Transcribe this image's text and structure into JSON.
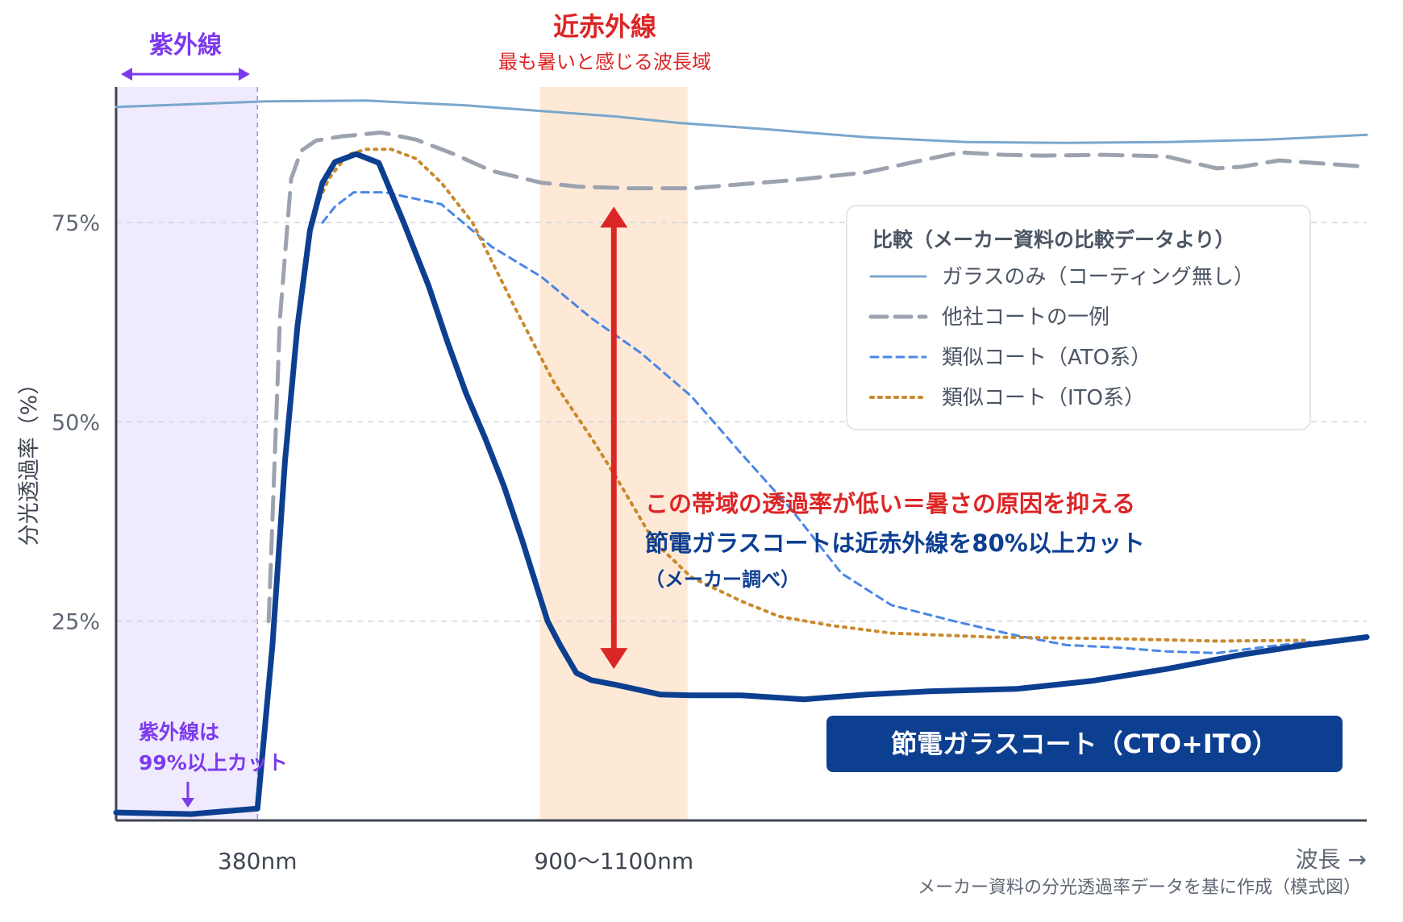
{
  "chart_data": {
    "type": "line",
    "ylabel": "分光透過率（%）",
    "xlabel": "波長 →",
    "source_note": "メーカー資料の分光透過率データを基に作成（模式図）",
    "ylim": [
      0,
      92
    ],
    "xlim": [
      0,
      100
    ],
    "y_ticks": [
      {
        "value": 25,
        "label": "25%"
      },
      {
        "value": 50,
        "label": "50%"
      },
      {
        "value": 75,
        "label": "75%"
      }
    ],
    "x_ticks": [
      {
        "value": 11.3,
        "label": "380nm"
      },
      {
        "value": 39.8,
        "label": "900〜1100nm"
      }
    ],
    "grid": "horizontal-dashed",
    "bands": [
      {
        "name": "uv",
        "from": 0,
        "to": 11.3,
        "color": "#efeafd",
        "title": "紫外線",
        "title_color": "#7c3aed"
      },
      {
        "name": "nir",
        "from": 33.9,
        "to": 45.7,
        "color": "#fde9d6",
        "title": "近赤外線",
        "subtitle": "最も暑いと感じる波長域",
        "title_color": "#dc2626"
      }
    ],
    "series": [
      {
        "name": "ガラスのみ（コーティング無し）",
        "color": "#7aa7cc",
        "style": "solid",
        "width": 3,
        "points": [
          [
            0,
            89.5
          ],
          [
            12,
            90.2
          ],
          [
            20,
            90.3
          ],
          [
            28,
            89.7
          ],
          [
            34,
            89.0
          ],
          [
            40,
            88.3
          ],
          [
            45,
            87.5
          ],
          [
            52,
            86.7
          ],
          [
            60,
            85.7
          ],
          [
            68,
            85.1
          ],
          [
            76,
            85.0
          ],
          [
            84,
            85.1
          ],
          [
            92,
            85.4
          ],
          [
            100,
            86.0
          ]
        ]
      },
      {
        "name": "他社コートの一例",
        "color": "#9ca3af",
        "style": "dashed",
        "width": 5,
        "points": [
          [
            12.2,
            25
          ],
          [
            13.1,
            63
          ],
          [
            14,
            80.5
          ],
          [
            14.8,
            84
          ],
          [
            16,
            85.3
          ],
          [
            18,
            85.8
          ],
          [
            21.2,
            86.3
          ],
          [
            24,
            85.4
          ],
          [
            27,
            83.6
          ],
          [
            30,
            81.5
          ],
          [
            34,
            80.0
          ],
          [
            37,
            79.5
          ],
          [
            41,
            79.3
          ],
          [
            46,
            79.3
          ],
          [
            54,
            80.3
          ],
          [
            60,
            81.3
          ],
          [
            65,
            83.0
          ],
          [
            67.5,
            83.8
          ],
          [
            71,
            83.5
          ],
          [
            74,
            83.4
          ],
          [
            79,
            83.5
          ],
          [
            84,
            83.3
          ],
          [
            88,
            81.8
          ],
          [
            90,
            82.0
          ],
          [
            93,
            82.8
          ],
          [
            100,
            82.0
          ]
        ]
      },
      {
        "name": "類似コート（ATO系）",
        "color": "#4a86e8",
        "style": "dashed-short",
        "width": 3,
        "points": [
          [
            16.5,
            75
          ],
          [
            17.5,
            77
          ],
          [
            19,
            78.8
          ],
          [
            21.5,
            78.8
          ],
          [
            26,
            77.3
          ],
          [
            30,
            72.0
          ],
          [
            34,
            68.2
          ],
          [
            38,
            63.0
          ],
          [
            42,
            58.6
          ],
          [
            46,
            53.2
          ],
          [
            50,
            46.0
          ],
          [
            54,
            39.0
          ],
          [
            58,
            31.0
          ],
          [
            62,
            27.0
          ],
          [
            67,
            25.0
          ],
          [
            72,
            23.2
          ],
          [
            76,
            22.0
          ],
          [
            80,
            21.7
          ],
          [
            84,
            21.2
          ],
          [
            88,
            21.0
          ],
          [
            92,
            21.8
          ],
          [
            95.5,
            22.4
          ]
        ]
      },
      {
        "name": "類似コート（ITO系）",
        "color": "#c98a2e",
        "style": "dotted",
        "width": 4,
        "points": [
          [
            16,
            77.0
          ],
          [
            17,
            80.5
          ],
          [
            18.5,
            83.5
          ],
          [
            20,
            84.2
          ],
          [
            22,
            84.2
          ],
          [
            24,
            83.0
          ],
          [
            26,
            80.0
          ],
          [
            28.5,
            75.0
          ],
          [
            32,
            64.0
          ],
          [
            35,
            55.0
          ],
          [
            38,
            48.0
          ],
          [
            40,
            43.0
          ],
          [
            43,
            35.0
          ],
          [
            46,
            30.5
          ],
          [
            50,
            27.5
          ],
          [
            53,
            25.6
          ],
          [
            57,
            24.5
          ],
          [
            62,
            23.5
          ],
          [
            70,
            23.0
          ],
          [
            80,
            22.8
          ],
          [
            88,
            22.5
          ],
          [
            95,
            22.6
          ]
        ]
      },
      {
        "name": "節電ガラスコート（CTO+ITO）",
        "color": "#0d3f91",
        "style": "solid",
        "width": 7,
        "points": [
          [
            0,
            1.0
          ],
          [
            6,
            0.8
          ],
          [
            11.3,
            1.5
          ],
          [
            12.5,
            22.0
          ],
          [
            13.5,
            45.0
          ],
          [
            14.5,
            62.0
          ],
          [
            15.5,
            74.0
          ],
          [
            16.5,
            80.0
          ],
          [
            17.5,
            82.6
          ],
          [
            19.2,
            83.6
          ],
          [
            21,
            82.5
          ],
          [
            23,
            75.0
          ],
          [
            25,
            67.0
          ],
          [
            26.5,
            60.0
          ],
          [
            28,
            53.5
          ],
          [
            29.5,
            48.0
          ],
          [
            31,
            42.0
          ],
          [
            32.5,
            35.0
          ],
          [
            33.5,
            30.0
          ],
          [
            34.5,
            25.0
          ],
          [
            35.5,
            22.0
          ],
          [
            36.8,
            18.5
          ],
          [
            38,
            17.6
          ],
          [
            40,
            17.0
          ],
          [
            43.5,
            15.8
          ],
          [
            46,
            15.7
          ],
          [
            50,
            15.7
          ],
          [
            55,
            15.2
          ],
          [
            60,
            15.8
          ],
          [
            65,
            16.2
          ],
          [
            72,
            16.5
          ],
          [
            78,
            17.5
          ],
          [
            84,
            19.0
          ],
          [
            90,
            20.8
          ],
          [
            95,
            22.0
          ],
          [
            100,
            23.0
          ]
        ]
      }
    ],
    "legend": {
      "title": "比較（メーカー資料の比較データより）",
      "position": "right-upper",
      "entries": [
        "ガラスのみ（コーティング無し）",
        "他社コートの一例",
        "類似コート（ATO系）",
        "類似コート（ITO系）"
      ]
    },
    "annotations": {
      "uv_note": [
        "紫外線は",
        "99%以上カット"
      ],
      "nir_title": "この帯域の透過率が低い＝暑さの原因を抑える",
      "nir_claim": "節電ガラスコートは近赤外線を80%以上カット",
      "nir_source": "（メーカー調べ）",
      "product_label": "節電ガラスコート（CTO+ITO）"
    },
    "arrow": {
      "x": 39.8,
      "from": 19,
      "to": 77,
      "color": "#dc2626"
    },
    "colors": {
      "axis": "#3f4652",
      "grid": "#d1d5db",
      "tick_text": "#5f6774",
      "annotation_red": "#dc2626",
      "annotation_navy": "#0d3f91",
      "uv_purple": "#7c3aed",
      "legend_text": "#4b5563",
      "product_box": "#0d3f91"
    }
  }
}
